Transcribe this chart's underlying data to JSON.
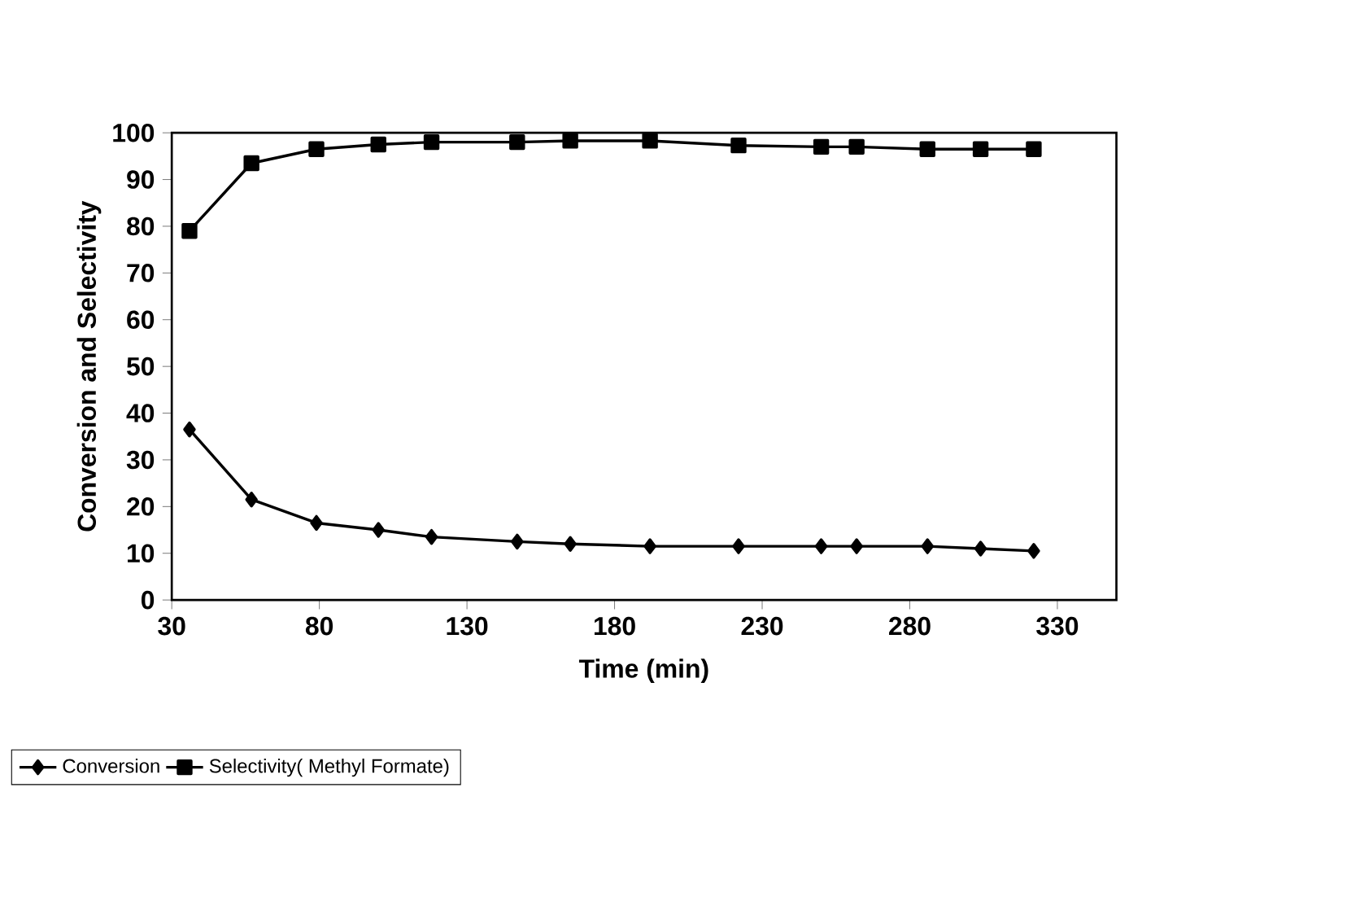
{
  "chart_data": {
    "type": "line",
    "xlabel": "Time (min)",
    "ylabel": "Conversion and Selectivity",
    "x": [
      36,
      57,
      79,
      100,
      118,
      147,
      165,
      192,
      222,
      250,
      262,
      286,
      304,
      322
    ],
    "series": [
      {
        "name": "Conversion",
        "color": "#000000",
        "marker": "diamond",
        "values": [
          36.5,
          21.5,
          16.5,
          15,
          13.5,
          12.5,
          12,
          11.5,
          11.5,
          11.5,
          11.5,
          11.5,
          11,
          10.5
        ]
      },
      {
        "name": "Selectivity( Methyl Formate)",
        "color": "#000000",
        "marker": "square",
        "values": [
          79,
          93.5,
          96.5,
          97.5,
          98,
          98,
          98.3,
          98.3,
          97.3,
          97,
          97,
          96.5,
          96.5,
          96.5
        ]
      }
    ],
    "xlim": [
      30,
      350
    ],
    "xticks": [
      30,
      80,
      130,
      180,
      230,
      280,
      330
    ],
    "ylim": [
      0,
      100
    ],
    "yticks": [
      0,
      10,
      20,
      30,
      40,
      50,
      60,
      70,
      80,
      90,
      100
    ],
    "grid": false,
    "legend": "bottom left",
    "line_style": "solid"
  }
}
